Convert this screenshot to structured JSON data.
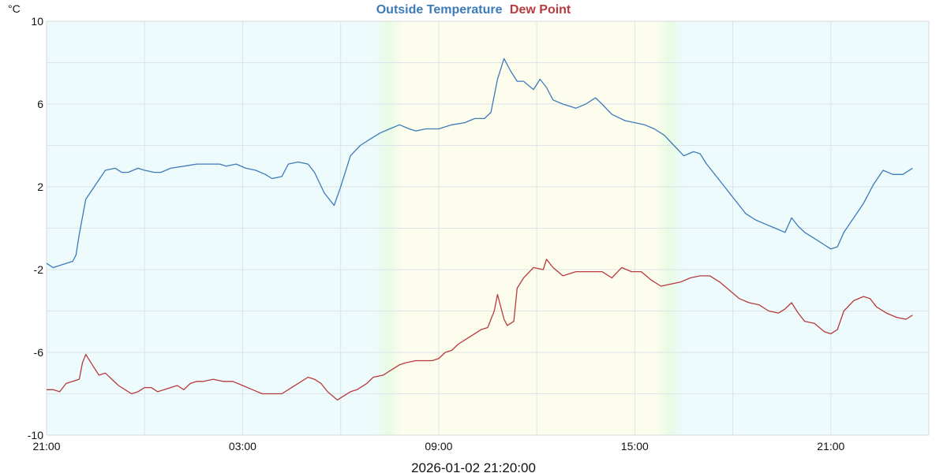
{
  "chart_data": {
    "type": "line",
    "title_parts": [
      {
        "text": "Outside Temperature",
        "color": "#3d7ab8"
      },
      {
        "text": "Dew Point",
        "color": "#b83a3d"
      }
    ],
    "ylabel": "°C",
    "ylim": [
      -10,
      10
    ],
    "yticks": [
      -10,
      -6,
      -2,
      2,
      6,
      10
    ],
    "x_unit": "hours since 21:00",
    "xlim": [
      0,
      27
    ],
    "xticks": [
      {
        "x": 0,
        "label": "21:00"
      },
      {
        "x": 6,
        "label": "03:00"
      },
      {
        "x": 12,
        "label": "09:00"
      },
      {
        "x": 18,
        "label": "15:00"
      },
      {
        "x": 24,
        "label": "21:00"
      }
    ],
    "grid": true,
    "series": [
      {
        "name": "Outside Temperature",
        "color": "#3d7ab8",
        "points": [
          [
            0,
            -1.7
          ],
          [
            0.2,
            -1.9
          ],
          [
            0.4,
            -1.8
          ],
          [
            0.6,
            -1.7
          ],
          [
            0.8,
            -1.6
          ],
          [
            0.9,
            -1.3
          ],
          [
            1.0,
            -0.3
          ],
          [
            1.2,
            1.4
          ],
          [
            1.5,
            2.1
          ],
          [
            1.8,
            2.8
          ],
          [
            2.1,
            2.9
          ],
          [
            2.3,
            2.7
          ],
          [
            2.5,
            2.7
          ],
          [
            2.8,
            2.9
          ],
          [
            3.0,
            2.8
          ],
          [
            3.3,
            2.7
          ],
          [
            3.5,
            2.7
          ],
          [
            3.8,
            2.9
          ],
          [
            4.2,
            3.0
          ],
          [
            4.6,
            3.1
          ],
          [
            5.0,
            3.1
          ],
          [
            5.3,
            3.1
          ],
          [
            5.5,
            3.0
          ],
          [
            5.8,
            3.1
          ],
          [
            6.1,
            2.9
          ],
          [
            6.4,
            2.8
          ],
          [
            6.7,
            2.6
          ],
          [
            6.9,
            2.4
          ],
          [
            7.2,
            2.5
          ],
          [
            7.4,
            3.1
          ],
          [
            7.7,
            3.2
          ],
          [
            8.0,
            3.1
          ],
          [
            8.2,
            2.7
          ],
          [
            8.5,
            1.7
          ],
          [
            8.8,
            1.1
          ],
          [
            9.0,
            2.0
          ],
          [
            9.3,
            3.5
          ],
          [
            9.6,
            4.0
          ],
          [
            9.9,
            4.3
          ],
          [
            10.2,
            4.6
          ],
          [
            10.5,
            4.8
          ],
          [
            10.8,
            5.0
          ],
          [
            11.1,
            4.8
          ],
          [
            11.3,
            4.7
          ],
          [
            11.6,
            4.8
          ],
          [
            12.0,
            4.8
          ],
          [
            12.4,
            5.0
          ],
          [
            12.8,
            5.1
          ],
          [
            13.1,
            5.3
          ],
          [
            13.4,
            5.3
          ],
          [
            13.6,
            5.6
          ],
          [
            13.8,
            7.2
          ],
          [
            14.0,
            8.2
          ],
          [
            14.2,
            7.6
          ],
          [
            14.4,
            7.1
          ],
          [
            14.6,
            7.1
          ],
          [
            14.9,
            6.7
          ],
          [
            15.1,
            7.2
          ],
          [
            15.3,
            6.8
          ],
          [
            15.5,
            6.2
          ],
          [
            15.8,
            6.0
          ],
          [
            16.2,
            5.8
          ],
          [
            16.5,
            6.0
          ],
          [
            16.8,
            6.3
          ],
          [
            17.0,
            6.0
          ],
          [
            17.3,
            5.5
          ],
          [
            17.7,
            5.2
          ],
          [
            18.0,
            5.1
          ],
          [
            18.3,
            5.0
          ],
          [
            18.6,
            4.8
          ],
          [
            18.9,
            4.5
          ],
          [
            19.2,
            4.0
          ],
          [
            19.5,
            3.5
          ],
          [
            19.8,
            3.7
          ],
          [
            20.0,
            3.6
          ],
          [
            20.2,
            3.1
          ],
          [
            20.5,
            2.5
          ],
          [
            20.8,
            1.9
          ],
          [
            21.1,
            1.3
          ],
          [
            21.4,
            0.7
          ],
          [
            21.7,
            0.4
          ],
          [
            22.0,
            0.2
          ],
          [
            22.3,
            0.0
          ],
          [
            22.6,
            -0.2
          ],
          [
            22.8,
            0.5
          ],
          [
            23.0,
            0.1
          ],
          [
            23.2,
            -0.2
          ],
          [
            23.5,
            -0.5
          ],
          [
            23.8,
            -0.8
          ],
          [
            24.0,
            -1.0
          ],
          [
            24.2,
            -0.9
          ],
          [
            24.4,
            -0.2
          ],
          [
            24.7,
            0.5
          ],
          [
            25.0,
            1.2
          ],
          [
            25.3,
            2.1
          ],
          [
            25.6,
            2.8
          ],
          [
            25.9,
            2.6
          ],
          [
            26.2,
            2.6
          ],
          [
            26.5,
            2.9
          ]
        ]
      },
      {
        "name": "Dew Point",
        "color": "#b83a3d",
        "points": [
          [
            0,
            -7.8
          ],
          [
            0.2,
            -7.8
          ],
          [
            0.4,
            -7.9
          ],
          [
            0.6,
            -7.5
          ],
          [
            0.8,
            -7.4
          ],
          [
            1.0,
            -7.3
          ],
          [
            1.1,
            -6.5
          ],
          [
            1.2,
            -6.1
          ],
          [
            1.4,
            -6.6
          ],
          [
            1.6,
            -7.1
          ],
          [
            1.8,
            -7.0
          ],
          [
            2.0,
            -7.3
          ],
          [
            2.2,
            -7.6
          ],
          [
            2.4,
            -7.8
          ],
          [
            2.6,
            -8.0
          ],
          [
            2.8,
            -7.9
          ],
          [
            3.0,
            -7.7
          ],
          [
            3.2,
            -7.7
          ],
          [
            3.4,
            -7.9
          ],
          [
            3.6,
            -7.8
          ],
          [
            3.8,
            -7.7
          ],
          [
            4.0,
            -7.6
          ],
          [
            4.2,
            -7.8
          ],
          [
            4.4,
            -7.5
          ],
          [
            4.6,
            -7.4
          ],
          [
            4.8,
            -7.4
          ],
          [
            5.1,
            -7.3
          ],
          [
            5.4,
            -7.4
          ],
          [
            5.7,
            -7.4
          ],
          [
            6.0,
            -7.6
          ],
          [
            6.3,
            -7.8
          ],
          [
            6.6,
            -8.0
          ],
          [
            6.9,
            -8.0
          ],
          [
            7.2,
            -8.0
          ],
          [
            7.5,
            -7.7
          ],
          [
            7.7,
            -7.5
          ],
          [
            8.0,
            -7.2
          ],
          [
            8.2,
            -7.3
          ],
          [
            8.4,
            -7.5
          ],
          [
            8.6,
            -7.9
          ],
          [
            8.9,
            -8.3
          ],
          [
            9.1,
            -8.1
          ],
          [
            9.3,
            -7.9
          ],
          [
            9.5,
            -7.8
          ],
          [
            9.8,
            -7.5
          ],
          [
            10.0,
            -7.2
          ],
          [
            10.3,
            -7.1
          ],
          [
            10.5,
            -6.9
          ],
          [
            10.8,
            -6.6
          ],
          [
            11.0,
            -6.5
          ],
          [
            11.3,
            -6.4
          ],
          [
            11.5,
            -6.4
          ],
          [
            11.8,
            -6.4
          ],
          [
            12.0,
            -6.3
          ],
          [
            12.2,
            -6.0
          ],
          [
            12.4,
            -5.9
          ],
          [
            12.6,
            -5.6
          ],
          [
            12.9,
            -5.3
          ],
          [
            13.1,
            -5.1
          ],
          [
            13.3,
            -4.9
          ],
          [
            13.5,
            -4.8
          ],
          [
            13.7,
            -4.0
          ],
          [
            13.8,
            -3.2
          ],
          [
            14.0,
            -4.4
          ],
          [
            14.1,
            -4.7
          ],
          [
            14.3,
            -4.5
          ],
          [
            14.4,
            -2.9
          ],
          [
            14.6,
            -2.4
          ],
          [
            14.9,
            -1.9
          ],
          [
            15.2,
            -2.0
          ],
          [
            15.3,
            -1.5
          ],
          [
            15.5,
            -1.9
          ],
          [
            15.8,
            -2.3
          ],
          [
            16.2,
            -2.1
          ],
          [
            16.6,
            -2.1
          ],
          [
            17.0,
            -2.1
          ],
          [
            17.3,
            -2.4
          ],
          [
            17.6,
            -1.9
          ],
          [
            17.9,
            -2.1
          ],
          [
            18.2,
            -2.1
          ],
          [
            18.5,
            -2.5
          ],
          [
            18.8,
            -2.8
          ],
          [
            19.1,
            -2.7
          ],
          [
            19.4,
            -2.6
          ],
          [
            19.7,
            -2.4
          ],
          [
            20.0,
            -2.3
          ],
          [
            20.3,
            -2.3
          ],
          [
            20.6,
            -2.6
          ],
          [
            20.9,
            -3.0
          ],
          [
            21.2,
            -3.4
          ],
          [
            21.5,
            -3.6
          ],
          [
            21.8,
            -3.7
          ],
          [
            22.1,
            -4.0
          ],
          [
            22.4,
            -4.1
          ],
          [
            22.6,
            -3.9
          ],
          [
            22.8,
            -3.6
          ],
          [
            23.0,
            -4.1
          ],
          [
            23.2,
            -4.5
          ],
          [
            23.5,
            -4.6
          ],
          [
            23.8,
            -5.0
          ],
          [
            24.0,
            -5.1
          ],
          [
            24.2,
            -4.9
          ],
          [
            24.4,
            -4.0
          ],
          [
            24.7,
            -3.5
          ],
          [
            25.0,
            -3.3
          ],
          [
            25.2,
            -3.4
          ],
          [
            25.4,
            -3.8
          ],
          [
            25.7,
            -4.1
          ],
          [
            26.0,
            -4.3
          ],
          [
            26.3,
            -4.4
          ],
          [
            26.5,
            -4.2
          ]
        ]
      }
    ],
    "background_bands": [
      {
        "x_start": 0,
        "x_end": 10.0,
        "color": "#edfbfd"
      },
      {
        "x_start": 10.0,
        "x_end": 10.9,
        "color": "gradient-night-to-day"
      },
      {
        "x_start": 10.9,
        "x_end": 18.6,
        "color": "#fdfdee"
      },
      {
        "x_start": 18.6,
        "x_end": 19.5,
        "color": "gradient-day-to-night"
      },
      {
        "x_start": 19.5,
        "x_end": 27,
        "color": "#edfbfd"
      }
    ],
    "footer": "2026-01-02 21:20:00"
  }
}
